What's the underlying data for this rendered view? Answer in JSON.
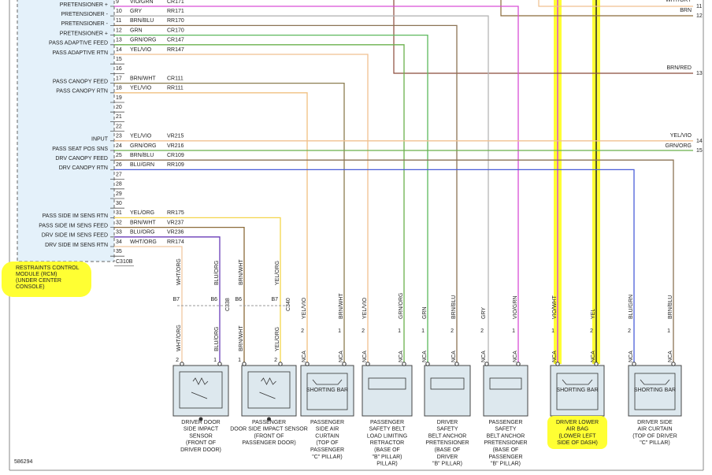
{
  "rcm": {
    "pins": [
      {
        "pin": 9,
        "function": "PRETENSIONER +",
        "wire": "VIO/GRN",
        "circuit": "CR171"
      },
      {
        "pin": 10,
        "function": "PRETENSIONER -",
        "wire": "GRY",
        "circuit": "RR171"
      },
      {
        "pin": 11,
        "function": "PRETENSIONER -",
        "wire": "BRN/BLU",
        "circuit": "RR170"
      },
      {
        "pin": 12,
        "function": "PRETENSIONER +",
        "wire": "GRN",
        "circuit": "CR170"
      },
      {
        "pin": 13,
        "function": "PASS ADAPTIVE FEED",
        "wire": "GRN/ORG",
        "circuit": "CR147"
      },
      {
        "pin": 14,
        "function": "PASS ADAPTIVE RTN",
        "wire": "YEL/VIO",
        "circuit": "RR147"
      },
      {
        "pin": 15
      },
      {
        "pin": 16
      },
      {
        "pin": 17,
        "function": "PASS CANOPY FEED",
        "wire": "BRN/WHT",
        "circuit": "CR111"
      },
      {
        "pin": 18,
        "function": "PASS CANOPY RTN",
        "wire": "YEL/VIO",
        "circuit": "RR111"
      },
      {
        "pin": 19
      },
      {
        "pin": 20
      },
      {
        "pin": 21
      },
      {
        "pin": 22
      },
      {
        "pin": 23,
        "function": "INPUT",
        "wire": "YEL/VIO",
        "circuit": "VR215"
      },
      {
        "pin": 24,
        "function": "PASS SEAT POS SNS",
        "wire": "GRN/ORG",
        "circuit": "VR216"
      },
      {
        "pin": 25,
        "function": "DRV CANOPY FEED",
        "wire": "BRN/BLU",
        "circuit": "CR109"
      },
      {
        "pin": 26,
        "function": "DRV CANOPY RTN",
        "wire": "BLU/GRN",
        "circuit": "RR109"
      },
      {
        "pin": 27
      },
      {
        "pin": 28
      },
      {
        "pin": 29
      },
      {
        "pin": 30
      },
      {
        "pin": 31,
        "function": "PASS SIDE IM SENS RTN",
        "wire": "YEL/ORG",
        "circuit": "RR175"
      },
      {
        "pin": 32,
        "function": "PASS SIDE IM SENS FEED",
        "wire": "BRN/WHT",
        "circuit": "VR237"
      },
      {
        "pin": 33,
        "function": "DRV SIDE IM SENS FEED",
        "wire": "BLU/ORG",
        "circuit": "VR236"
      },
      {
        "pin": 34,
        "function": "DRV SIDE IM SENS RTN",
        "wire": "WHT/ORG",
        "circuit": "RR174"
      },
      {
        "pin": 35
      }
    ],
    "connector": "C310B",
    "label": [
      "RESTRAINTS CONTROL",
      "MODULE (RCM)",
      "(UNDER CENTER",
      "CONSOLE)"
    ]
  },
  "right_connectors": [
    {
      "number": 11,
      "wire": "WHT/GRY"
    },
    {
      "number": 12,
      "wire": "BRN"
    },
    {
      "number": 13,
      "wire": "BRN/RED"
    },
    {
      "number": 14,
      "wire": "YEL/VIO"
    },
    {
      "number": 15,
      "wire": "GRN/ORG"
    }
  ],
  "components": [
    {
      "connector": "C338",
      "terminals": [
        {
          "wire": "WHT/ORG",
          "conn_pin": "B7",
          "pin": 2
        },
        {
          "wire": "BLU/ORG",
          "conn_pin": "B6",
          "pin": 1
        }
      ],
      "label": [
        "DRIVER DOOR",
        "SIDE IMPACT",
        "SENSOR",
        "(FRONT OF",
        "DRIVER DOOR)"
      ]
    },
    {
      "connector": "C340",
      "terminals": [
        {
          "wire": "BRN/WHT",
          "conn_pin": "B6",
          "pin": 1
        },
        {
          "wire": "YEL/ORG",
          "conn_pin": "B7",
          "pin": 2
        }
      ],
      "label": [
        "PASSENGER",
        "DOOR SIDE IMPACT SENSOR",
        "(FRONT OF",
        "PASSENGER DOOR)"
      ]
    },
    {
      "inner_label": "SHORTING BAR",
      "terminals": [
        {
          "wire": "YEL/VIO",
          "pin": 2,
          "nca": "NCA"
        },
        {
          "wire": "BRN/WHT",
          "pin": 1,
          "nca": "NCA"
        }
      ],
      "label": [
        "PASSENGER",
        "SIDE AIR",
        "CURTAIN",
        "(TOP OF",
        "PASSENGER",
        "\"C\" PILLAR)"
      ]
    },
    {
      "terminals": [
        {
          "wire": "YEL/VIO",
          "pin": 2,
          "nca": "NCA"
        },
        {
          "wire": "GRN/ORG",
          "pin": 1,
          "nca": "NCA"
        }
      ],
      "label": [
        "PASSENGER",
        "SAFETY BELT",
        "LOAD LIMITING",
        "RETRACTOR",
        "(BASE OF",
        "\"B\" PILLAR)",
        "PILLAR)"
      ]
    },
    {
      "terminals": [
        {
          "wire": "GRN",
          "pin": 1,
          "nca": "NCA"
        },
        {
          "wire": "BRN/BLU",
          "pin": 2,
          "nca": "NCA"
        }
      ],
      "label": [
        "DRIVER",
        "SAFETY",
        "BELT ANCHOR",
        "PRETENSIONER",
        "(BASE OF",
        "DRIVER",
        "\"B\" PILLAR)"
      ]
    },
    {
      "terminals": [
        {
          "wire": "GRY",
          "pin": 2,
          "nca": "NCA"
        },
        {
          "wire": "VIO/GRN",
          "pin": 1,
          "nca": "NCA"
        }
      ],
      "label": [
        "PASSENGER",
        "SAFETY",
        "BELT ANCHOR",
        "PRETENSIONER",
        "(BASE OF",
        "PASSENGER",
        "\"B\" PILLAR)"
      ]
    },
    {
      "inner_label": "SHORTING BAR",
      "terminals": [
        {
          "wire": "VIO/WHT",
          "pin": 1,
          "nca": "NCA"
        },
        {
          "wire": "YEL",
          "pin": 2,
          "nca": "NCA"
        }
      ],
      "label": [
        "DRIVER LOWER",
        "AIR BAG",
        "(LOWER LEFT",
        "SIDE OF DASH)"
      ]
    },
    {
      "inner_label": "SHORTING BAR",
      "terminals": [
        {
          "wire": "BLU/GRN",
          "pin": 2,
          "nca": "NCA"
        },
        {
          "wire": "BRN/BLU",
          "pin": 1,
          "nca": "NCA"
        }
      ],
      "label": [
        "DRIVER SIDE",
        "AIR CURTAIN",
        "(TOP OF DRIVER",
        "\"C\" PILLAR)"
      ]
    }
  ],
  "figure_id": "586294"
}
